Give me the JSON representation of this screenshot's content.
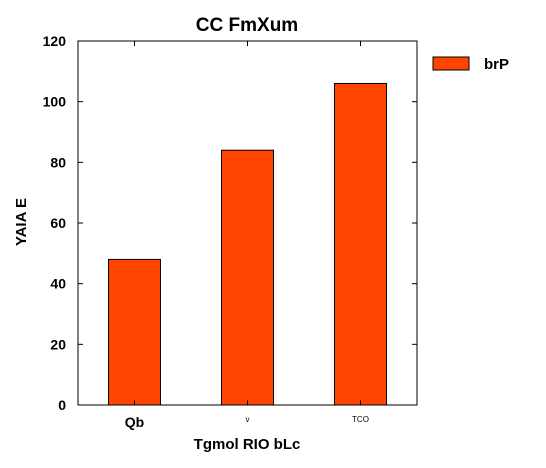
{
  "chart_data": {
    "type": "bar",
    "title": "CC FmXum",
    "xlabel": "Tgmol  RIO bLc",
    "ylabel": "YAIA E",
    "categories": [
      "Qb",
      "v",
      "TCO"
    ],
    "category_label_sizes": [
      "normal",
      "tiny",
      "tiny"
    ],
    "series": [
      {
        "name": "brP",
        "values": [
          48,
          84,
          106
        ],
        "color": "#ff4500"
      }
    ],
    "ylim": [
      0,
      120
    ],
    "yticks": [
      0,
      20,
      40,
      60,
      80,
      100,
      120
    ],
    "grid": false,
    "legend": "outside-top-right"
  }
}
